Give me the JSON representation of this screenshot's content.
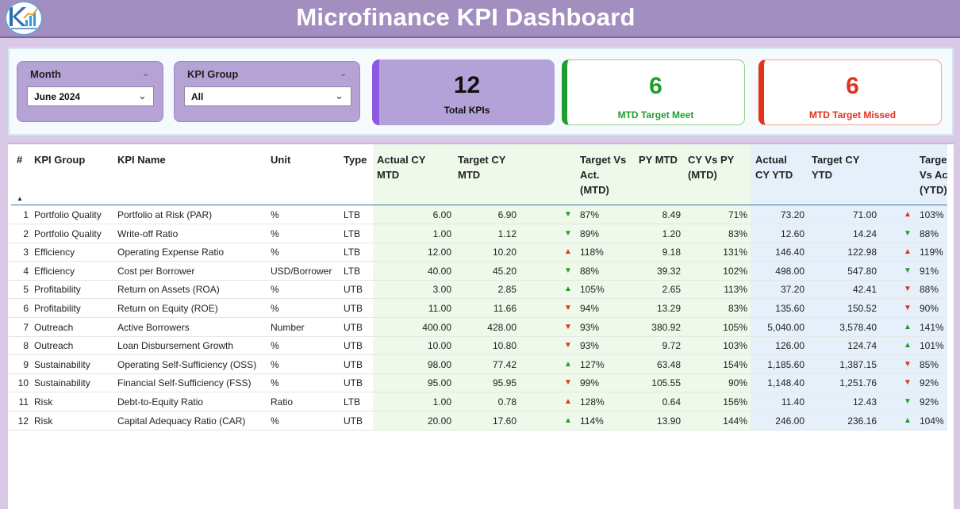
{
  "header": {
    "title": "Microfinance KPI Dashboard",
    "logo_icon": "kpi-chart-logo"
  },
  "filters": {
    "month": {
      "label": "Month",
      "value": "June 2024"
    },
    "kpi_group": {
      "label": "KPI Group",
      "value": "All"
    }
  },
  "cards": {
    "total": {
      "value": "12",
      "label": "Total KPIs"
    },
    "meet": {
      "value": "6",
      "label": "MTD Target Meet"
    },
    "missed": {
      "value": "6",
      "label": "MTD Target Missed"
    }
  },
  "colors": {
    "green": "#1e9e2e",
    "red": "#e2311c",
    "purple": "#a38ec0"
  },
  "table": {
    "headers": {
      "num": "#",
      "group": "KPI Group",
      "name": "KPI Name",
      "unit": "Unit",
      "type": "Type",
      "actual_mtd": [
        "Actual CY",
        "MTD"
      ],
      "target_mtd": [
        "Target CY",
        "MTD"
      ],
      "tva_mtd": [
        "Target Vs",
        "Act.",
        "(MTD)"
      ],
      "py_mtd": "PY MTD",
      "cy_py_mtd": [
        "CY Vs PY",
        "(MTD)"
      ],
      "actual_ytd": [
        "Actual",
        "CY YTD"
      ],
      "target_ytd": [
        "Target CY",
        "YTD"
      ],
      "tva_ytd": [
        "Targe",
        "Vs Ac",
        "(YTD)"
      ]
    },
    "rows": [
      {
        "n": "1",
        "group": "Portfolio Quality",
        "name": "Portfolio at Risk (PAR)",
        "unit": "%",
        "type": "LTB",
        "act": "6.00",
        "tgt": "6.90",
        "dir": "down",
        "tva": "87%",
        "py": "8.49",
        "cypy": "71%",
        "act_y": "73.20",
        "tgt_y": "71.00",
        "dir_y": "up",
        "tva_y": "103%"
      },
      {
        "n": "2",
        "group": "Portfolio Quality",
        "name": "Write-off Ratio",
        "unit": "%",
        "type": "LTB",
        "act": "1.00",
        "tgt": "1.12",
        "dir": "down",
        "tva": "89%",
        "py": "1.20",
        "cypy": "83%",
        "act_y": "12.60",
        "tgt_y": "14.24",
        "dir_y": "down",
        "tva_y": "88%"
      },
      {
        "n": "3",
        "group": "Efficiency",
        "name": "Operating Expense Ratio",
        "unit": "%",
        "type": "LTB",
        "act": "12.00",
        "tgt": "10.20",
        "dir": "up",
        "tva": "118%",
        "py": "9.18",
        "cypy": "131%",
        "act_y": "146.40",
        "tgt_y": "122.98",
        "dir_y": "up",
        "tva_y": "119%"
      },
      {
        "n": "4",
        "group": "Efficiency",
        "name": "Cost per Borrower",
        "unit": "USD/Borrower",
        "type": "LTB",
        "act": "40.00",
        "tgt": "45.20",
        "dir": "down",
        "tva": "88%",
        "py": "39.32",
        "cypy": "102%",
        "act_y": "498.00",
        "tgt_y": "547.80",
        "dir_y": "down",
        "tva_y": "91%"
      },
      {
        "n": "5",
        "group": "Profitability",
        "name": "Return on Assets (ROA)",
        "unit": "%",
        "type": "UTB",
        "act": "3.00",
        "tgt": "2.85",
        "dir": "up",
        "tva": "105%",
        "py": "2.65",
        "cypy": "113%",
        "act_y": "37.20",
        "tgt_y": "42.41",
        "dir_y": "down",
        "tva_y": "88%"
      },
      {
        "n": "6",
        "group": "Profitability",
        "name": "Return on Equity (ROE)",
        "unit": "%",
        "type": "UTB",
        "act": "11.00",
        "tgt": "11.66",
        "dir": "down",
        "tva": "94%",
        "py": "13.29",
        "cypy": "83%",
        "act_y": "135.60",
        "tgt_y": "150.52",
        "dir_y": "down",
        "tva_y": "90%"
      },
      {
        "n": "7",
        "group": "Outreach",
        "name": "Active Borrowers",
        "unit": "Number",
        "type": "UTB",
        "act": "400.00",
        "tgt": "428.00",
        "dir": "down",
        "tva": "93%",
        "py": "380.92",
        "cypy": "105%",
        "act_y": "5,040.00",
        "tgt_y": "3,578.40",
        "dir_y": "up",
        "tva_y": "141%"
      },
      {
        "n": "8",
        "group": "Outreach",
        "name": "Loan Disbursement Growth",
        "unit": "%",
        "type": "UTB",
        "act": "10.00",
        "tgt": "10.80",
        "dir": "down",
        "tva": "93%",
        "py": "9.72",
        "cypy": "103%",
        "act_y": "126.00",
        "tgt_y": "124.74",
        "dir_y": "up",
        "tva_y": "101%"
      },
      {
        "n": "9",
        "group": "Sustainability",
        "name": "Operating Self-Sufficiency (OSS)",
        "unit": "%",
        "type": "UTB",
        "act": "98.00",
        "tgt": "77.42",
        "dir": "up",
        "tva": "127%",
        "py": "63.48",
        "cypy": "154%",
        "act_y": "1,185.60",
        "tgt_y": "1,387.15",
        "dir_y": "down",
        "tva_y": "85%"
      },
      {
        "n": "10",
        "group": "Sustainability",
        "name": "Financial Self-Sufficiency (FSS)",
        "unit": "%",
        "type": "UTB",
        "act": "95.00",
        "tgt": "95.95",
        "dir": "down",
        "tva": "99%",
        "py": "105.55",
        "cypy": "90%",
        "act_y": "1,148.40",
        "tgt_y": "1,251.76",
        "dir_y": "down",
        "tva_y": "92%"
      },
      {
        "n": "11",
        "group": "Risk",
        "name": "Debt-to-Equity Ratio",
        "unit": "Ratio",
        "type": "LTB",
        "act": "1.00",
        "tgt": "0.78",
        "dir": "up",
        "tva": "128%",
        "py": "0.64",
        "cypy": "156%",
        "act_y": "11.40",
        "tgt_y": "12.43",
        "dir_y": "down",
        "tva_y": "92%"
      },
      {
        "n": "12",
        "group": "Risk",
        "name": "Capital Adequacy Ratio (CAR)",
        "unit": "%",
        "type": "UTB",
        "act": "20.00",
        "tgt": "17.60",
        "dir": "up",
        "tva": "114%",
        "py": "13.90",
        "cypy": "144%",
        "act_y": "246.00",
        "tgt_y": "236.16",
        "dir_y": "up",
        "tva_y": "104%"
      }
    ]
  }
}
